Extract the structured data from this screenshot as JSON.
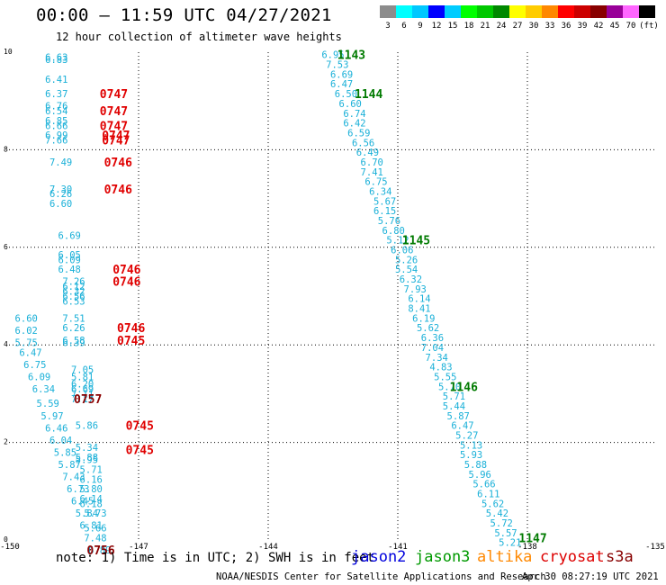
{
  "header": {
    "title": "00:00 – 11:59 UTC 04/27/2021",
    "subtitle": "12 hour collection of altimeter wave heights"
  },
  "legend_bar": {
    "colors": [
      "#8c8c8c",
      "#00ffff",
      "#00c8ff",
      "#0000ff",
      "#00ccff",
      "#00ff00",
      "#00c800",
      "#008800",
      "#ffff00",
      "#ffcc00",
      "#ff8800",
      "#ff0000",
      "#cc0000",
      "#880000",
      "#990099",
      "#ff66ff",
      "#000000"
    ],
    "labels": [
      "3",
      "6",
      "9",
      "12",
      "15",
      "18",
      "21",
      "24",
      "27",
      "30",
      "33",
      "36",
      "39",
      "42",
      "45",
      "70",
      "(ft)"
    ]
  },
  "footer": {
    "note": "note: 1) Time is in UTC; 2) SWH is in feet",
    "satellites": [
      {
        "name": "jason2",
        "color": "#0000dd"
      },
      {
        "name": "jason3",
        "color": "#009900"
      },
      {
        "name": "altika",
        "color": "#ff8800"
      },
      {
        "name": "cryosat",
        "color": "#dd0000"
      },
      {
        "name": "s3a",
        "color": "#880000"
      }
    ],
    "credit": "NOAA/NESDIS Center for Satellite Applications and Research",
    "timestamp": "Apr 30 08:27:19 UTC 2021"
  },
  "chart_data": {
    "type": "scatter",
    "title": "00:00 – 11:59 UTC 04/27/2021",
    "subtitle": "12 hour collection of altimeter wave heights",
    "xlim": [
      -150,
      -135
    ],
    "ylim": [
      0,
      10
    ],
    "x_ticks": [
      "-150",
      "-147",
      "-144",
      "-141",
      "-138",
      "-135"
    ],
    "y_ticks": [
      "0",
      "2",
      "4",
      "6",
      "8",
      "10"
    ],
    "grid": true,
    "points": [
      {
        "x": -148.9,
        "y": 9.9,
        "v": "6.63"
      },
      {
        "x": -148.9,
        "y": 9.85,
        "v": "6.83"
      },
      {
        "x": -148.9,
        "y": 9.45,
        "v": "6.41"
      },
      {
        "x": -148.9,
        "y": 9.15,
        "v": "6.37"
      },
      {
        "x": -148.9,
        "y": 8.9,
        "v": "6.76"
      },
      {
        "x": -148.9,
        "y": 8.8,
        "v": "6.54"
      },
      {
        "x": -148.9,
        "y": 8.6,
        "v": "6.85"
      },
      {
        "x": -148.9,
        "y": 8.5,
        "v": "6.66"
      },
      {
        "x": -148.9,
        "y": 8.3,
        "v": "6.99"
      },
      {
        "x": -148.9,
        "y": 8.2,
        "v": "7.66"
      },
      {
        "x": -148.8,
        "y": 7.75,
        "v": "7.49"
      },
      {
        "x": -148.8,
        "y": 7.2,
        "v": "7.30"
      },
      {
        "x": -148.8,
        "y": 7.1,
        "v": "6.26"
      },
      {
        "x": -148.8,
        "y": 6.9,
        "v": "6.60"
      },
      {
        "x": -148.6,
        "y": 6.25,
        "v": "6.69"
      },
      {
        "x": -148.6,
        "y": 5.85,
        "v": "6.05"
      },
      {
        "x": -148.6,
        "y": 5.75,
        "v": "6.09"
      },
      {
        "x": -148.6,
        "y": 5.55,
        "v": "6.48"
      },
      {
        "x": -148.5,
        "y": 5.3,
        "v": "7.26"
      },
      {
        "x": -148.5,
        "y": 5.2,
        "v": "6.12"
      },
      {
        "x": -148.5,
        "y": 5.1,
        "v": "6.32"
      },
      {
        "x": -148.5,
        "y": 5.0,
        "v": "6.56"
      },
      {
        "x": -148.5,
        "y": 4.9,
        "v": "6.53"
      },
      {
        "x": -149.6,
        "y": 4.55,
        "v": "6.60"
      },
      {
        "x": -149.6,
        "y": 4.3,
        "v": "6.02"
      },
      {
        "x": -149.6,
        "y": 4.05,
        "v": "5.75"
      },
      {
        "x": -148.5,
        "y": 4.55,
        "v": "7.51"
      },
      {
        "x": -148.5,
        "y": 4.35,
        "v": "6.26"
      },
      {
        "x": -148.5,
        "y": 4.1,
        "v": "6.58"
      },
      {
        "x": -148.5,
        "y": 4.05,
        "v": "6.39"
      },
      {
        "x": -149.5,
        "y": 3.85,
        "v": "6.47"
      },
      {
        "x": -149.4,
        "y": 3.6,
        "v": "6.75"
      },
      {
        "x": -149.3,
        "y": 3.35,
        "v": "6.09"
      },
      {
        "x": -149.2,
        "y": 3.1,
        "v": "6.34"
      },
      {
        "x": -149.1,
        "y": 2.8,
        "v": "5.59"
      },
      {
        "x": -149.0,
        "y": 2.55,
        "v": "5.97"
      },
      {
        "x": -148.9,
        "y": 2.3,
        "v": "6.46"
      },
      {
        "x": -148.8,
        "y": 2.05,
        "v": "6.04"
      },
      {
        "x": -148.7,
        "y": 1.8,
        "v": "5.85"
      },
      {
        "x": -148.6,
        "y": 1.55,
        "v": "5.87"
      },
      {
        "x": -148.5,
        "y": 1.3,
        "v": "7.43"
      },
      {
        "x": -148.4,
        "y": 1.05,
        "v": "6.73"
      },
      {
        "x": -148.3,
        "y": 0.8,
        "v": "6.45"
      },
      {
        "x": -148.2,
        "y": 0.55,
        "v": "5.84"
      },
      {
        "x": -148.1,
        "y": 0.3,
        "v": "6.81"
      },
      {
        "x": -148.0,
        "y": 0.05,
        "v": "7.48"
      },
      {
        "x": -147.9,
        "y": -0.2,
        "v": "6.89"
      },
      {
        "x": -148.3,
        "y": 3.5,
        "v": "7.05"
      },
      {
        "x": -148.3,
        "y": 3.35,
        "v": "5.81"
      },
      {
        "x": -148.3,
        "y": 3.2,
        "v": "6.20"
      },
      {
        "x": -148.3,
        "y": 3.1,
        "v": "6.69"
      },
      {
        "x": -148.3,
        "y": 3.0,
        "v": "7.11"
      },
      {
        "x": -148.3,
        "y": 2.9,
        "v": "7.17"
      },
      {
        "x": -148.2,
        "y": 2.35,
        "v": "5.86"
      },
      {
        "x": -148.2,
        "y": 1.9,
        "v": "5.34"
      },
      {
        "x": -148.2,
        "y": 1.7,
        "v": "5.88"
      },
      {
        "x": -148.2,
        "y": 1.65,
        "v": "5.95"
      },
      {
        "x": -148.1,
        "y": 1.45,
        "v": "5.71"
      },
      {
        "x": -148.1,
        "y": 1.25,
        "v": "6.16"
      },
      {
        "x": -148.1,
        "y": 1.05,
        "v": "5.80"
      },
      {
        "x": -148.1,
        "y": 0.85,
        "v": "6.14"
      },
      {
        "x": -148.1,
        "y": 0.75,
        "v": "6.18"
      },
      {
        "x": -148.0,
        "y": 0.55,
        "v": "5.73"
      },
      {
        "x": -148.0,
        "y": 0.25,
        "v": "5.66"
      },
      {
        "x": -142.5,
        "y": 9.95,
        "v": "6.95"
      },
      {
        "x": -142.4,
        "y": 9.75,
        "v": "7.53"
      },
      {
        "x": -142.3,
        "y": 9.55,
        "v": "6.69"
      },
      {
        "x": -142.3,
        "y": 9.35,
        "v": "6.47"
      },
      {
        "x": -142.2,
        "y": 9.15,
        "v": "6.50"
      },
      {
        "x": -142.1,
        "y": 8.95,
        "v": "6.60"
      },
      {
        "x": -142.0,
        "y": 8.75,
        "v": "6.74"
      },
      {
        "x": -142.0,
        "y": 8.55,
        "v": "6.42"
      },
      {
        "x": -141.9,
        "y": 8.35,
        "v": "6.59"
      },
      {
        "x": -141.8,
        "y": 8.15,
        "v": "6.56"
      },
      {
        "x": -141.7,
        "y": 7.95,
        "v": "6.49"
      },
      {
        "x": -141.6,
        "y": 7.75,
        "v": "6.70"
      },
      {
        "x": -141.6,
        "y": 7.55,
        "v": "7.41"
      },
      {
        "x": -141.5,
        "y": 7.35,
        "v": "6.75"
      },
      {
        "x": -141.4,
        "y": 7.15,
        "v": "6.34"
      },
      {
        "x": -141.3,
        "y": 6.95,
        "v": "5.67"
      },
      {
        "x": -141.3,
        "y": 6.75,
        "v": "6.15"
      },
      {
        "x": -141.2,
        "y": 6.55,
        "v": "5.76"
      },
      {
        "x": -141.1,
        "y": 6.35,
        "v": "6.80"
      },
      {
        "x": -141.0,
        "y": 6.15,
        "v": "5.12"
      },
      {
        "x": -140.9,
        "y": 5.95,
        "v": "6.06"
      },
      {
        "x": -140.8,
        "y": 5.75,
        "v": "5.26"
      },
      {
        "x": -140.8,
        "y": 5.55,
        "v": "5.54"
      },
      {
        "x": -140.7,
        "y": 5.35,
        "v": "6.32"
      },
      {
        "x": -140.6,
        "y": 5.15,
        "v": "7.93"
      },
      {
        "x": -140.5,
        "y": 4.95,
        "v": "6.14"
      },
      {
        "x": -140.5,
        "y": 4.75,
        "v": "8.41"
      },
      {
        "x": -140.4,
        "y": 4.55,
        "v": "6.19"
      },
      {
        "x": -140.3,
        "y": 4.35,
        "v": "5.62"
      },
      {
        "x": -140.2,
        "y": 4.15,
        "v": "6.36"
      },
      {
        "x": -140.2,
        "y": 3.95,
        "v": "7.04"
      },
      {
        "x": -140.1,
        "y": 3.75,
        "v": "7.34"
      },
      {
        "x": -140.0,
        "y": 3.55,
        "v": "4.83"
      },
      {
        "x": -139.9,
        "y": 3.35,
        "v": "5.55"
      },
      {
        "x": -139.8,
        "y": 3.15,
        "v": "5.70"
      },
      {
        "x": -139.7,
        "y": 2.95,
        "v": "5.71"
      },
      {
        "x": -139.7,
        "y": 2.75,
        "v": "5.44"
      },
      {
        "x": -139.6,
        "y": 2.55,
        "v": "5.87"
      },
      {
        "x": -139.5,
        "y": 2.35,
        "v": "6.47"
      },
      {
        "x": -139.4,
        "y": 2.15,
        "v": "5.27"
      },
      {
        "x": -139.3,
        "y": 1.95,
        "v": "5.13"
      },
      {
        "x": -139.3,
        "y": 1.75,
        "v": "5.93"
      },
      {
        "x": -139.2,
        "y": 1.55,
        "v": "5.88"
      },
      {
        "x": -139.1,
        "y": 1.35,
        "v": "5.96"
      },
      {
        "x": -139.0,
        "y": 1.15,
        "v": "5.66"
      },
      {
        "x": -138.9,
        "y": 0.95,
        "v": "6.11"
      },
      {
        "x": -138.8,
        "y": 0.75,
        "v": "5.62"
      },
      {
        "x": -138.7,
        "y": 0.55,
        "v": "5.42"
      },
      {
        "x": -138.6,
        "y": 0.35,
        "v": "5.72"
      },
      {
        "x": -138.5,
        "y": 0.15,
        "v": "5.57"
      },
      {
        "x": -138.4,
        "y": -0.05,
        "v": "5.21"
      }
    ],
    "time_labels": [
      {
        "x": -147.9,
        "y": 9.15,
        "v": "0747",
        "sat": "cryosat"
      },
      {
        "x": -147.9,
        "y": 8.8,
        "v": "0747",
        "sat": "cryosat"
      },
      {
        "x": -147.9,
        "y": 8.5,
        "v": "0747",
        "sat": "cryosat"
      },
      {
        "x": -147.85,
        "y": 8.3,
        "v": "0747",
        "sat": "cryosat"
      },
      {
        "x": -147.85,
        "y": 8.2,
        "v": "0747",
        "sat": "cryosat"
      },
      {
        "x": -147.8,
        "y": 7.75,
        "v": "0746",
        "sat": "cryosat"
      },
      {
        "x": -147.8,
        "y": 7.2,
        "v": "0746",
        "sat": "cryosat"
      },
      {
        "x": -147.6,
        "y": 5.55,
        "v": "0746",
        "sat": "cryosat"
      },
      {
        "x": -147.6,
        "y": 5.3,
        "v": "0746",
        "sat": "cryosat"
      },
      {
        "x": -147.5,
        "y": 4.35,
        "v": "0746",
        "sat": "cryosat"
      },
      {
        "x": -147.5,
        "y": 4.1,
        "v": "0745",
        "sat": "cryosat"
      },
      {
        "x": -147.3,
        "y": 2.35,
        "v": "0745",
        "sat": "cryosat"
      },
      {
        "x": -147.3,
        "y": 1.85,
        "v": "0745",
        "sat": "cryosat"
      },
      {
        "x": -148.5,
        "y": 2.9,
        "v": "0757",
        "sat": "s3a"
      },
      {
        "x": -148.2,
        "y": -0.2,
        "v": "0756",
        "sat": "s3a"
      },
      {
        "x": -142.4,
        "y": 9.95,
        "v": "1143",
        "sat": "jason3"
      },
      {
        "x": -142.0,
        "y": 9.15,
        "v": "1144",
        "sat": "jason3"
      },
      {
        "x": -140.9,
        "y": 6.15,
        "v": "1145",
        "sat": "jason3"
      },
      {
        "x": -139.8,
        "y": 3.15,
        "v": "1146",
        "sat": "jason3"
      },
      {
        "x": -138.2,
        "y": 0.05,
        "v": "1147",
        "sat": "jason3"
      }
    ]
  }
}
